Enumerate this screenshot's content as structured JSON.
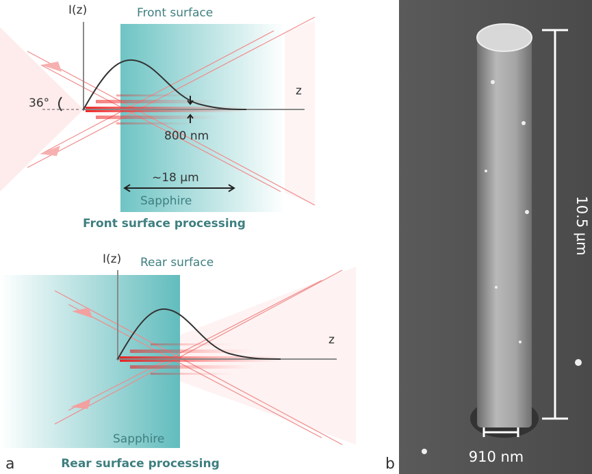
{
  "panel_a": {
    "label": "a",
    "front": {
      "axis_y_label": "I(z)",
      "surface_label": "Front surface",
      "axis_z_label": "z",
      "angle": "36°",
      "spot": "800 nm",
      "depth": "~18 µm",
      "material": "Sapphire",
      "caption": "Front surface processing"
    },
    "rear": {
      "axis_y_label": "I(z)",
      "surface_label": "Rear surface",
      "axis_z_label": "z",
      "material": "Sapphire",
      "caption": "Rear surface processing"
    }
  },
  "panel_b": {
    "label": "b",
    "height": "10.5 µm",
    "width": "910 nm"
  }
}
